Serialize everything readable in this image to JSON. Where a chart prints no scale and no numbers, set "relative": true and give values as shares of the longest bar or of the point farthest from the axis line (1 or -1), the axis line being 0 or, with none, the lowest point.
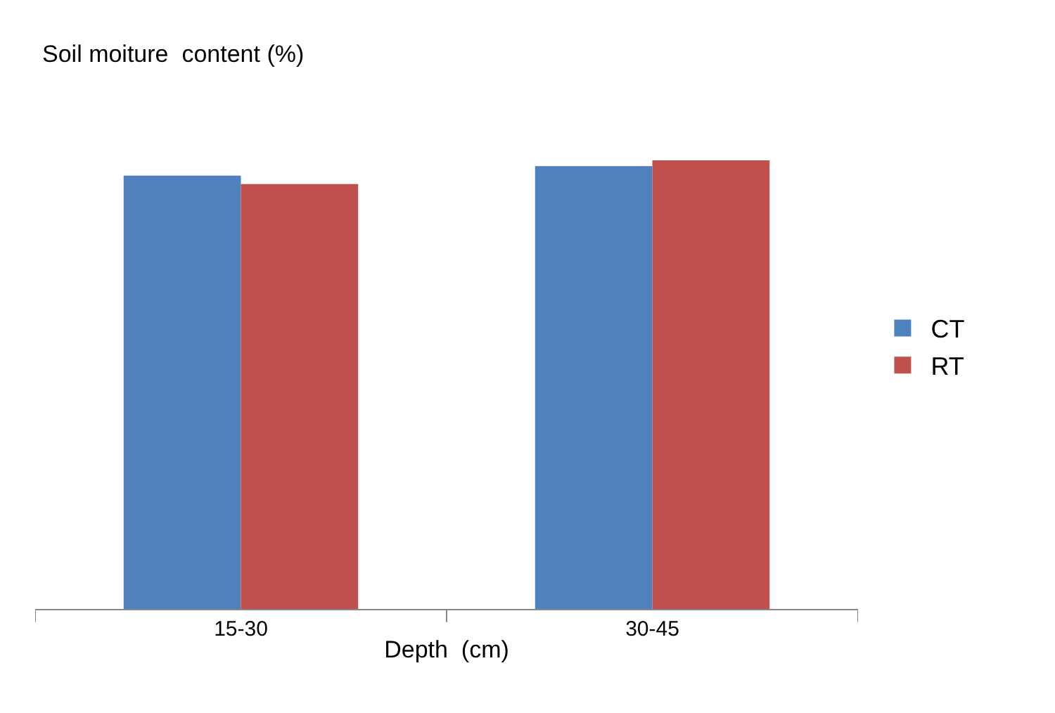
{
  "chart_data": {
    "type": "bar",
    "title": "Soil moiture  content (%)",
    "xlabel": "Depth  (cm)",
    "relative": true,
    "categories": [
      "15-30",
      "30-45"
    ],
    "series": [
      {
        "name": "CT",
        "color": "#4f81bd",
        "values": [
          0.966,
          0.987
        ]
      },
      {
        "name": "RT",
        "color": "#c0504d",
        "values": [
          0.947,
          1.0
        ]
      }
    ],
    "legend": "right"
  }
}
